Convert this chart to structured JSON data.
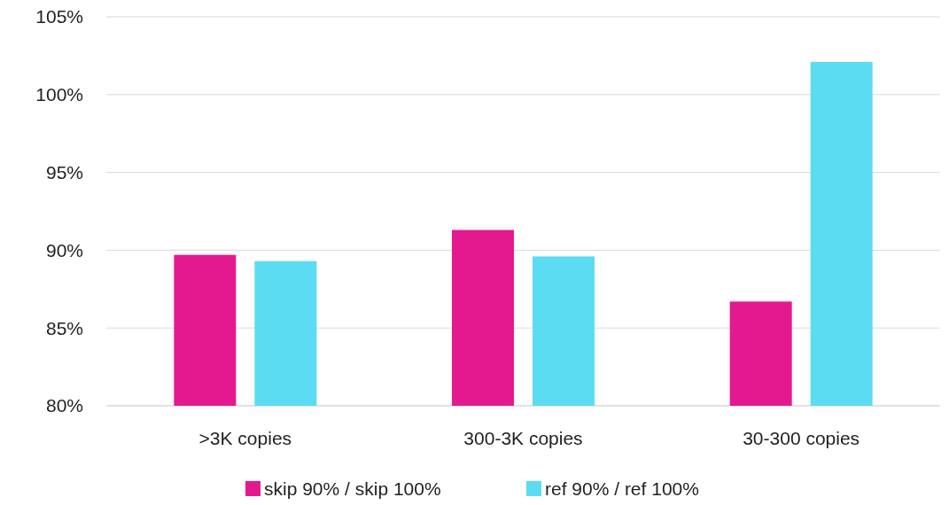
{
  "chart_data": {
    "type": "bar",
    "categories": [
      ">3K copies",
      "300-3K copies",
      "30-300 copies"
    ],
    "series": [
      {
        "name": "skip 90% / skip 100%",
        "color": "#e5198f",
        "values": [
          89.7,
          91.3,
          86.7
        ]
      },
      {
        "name": "ref 90% / ref 100%",
        "color": "#5bdcf2",
        "values": [
          89.3,
          89.6,
          102.1
        ]
      }
    ],
    "ylim": [
      80,
      105
    ],
    "yticks": [
      {
        "value": 80,
        "label": "80%"
      },
      {
        "value": 85,
        "label": "85%"
      },
      {
        "value": 90,
        "label": "90%"
      },
      {
        "value": 95,
        "label": "95%"
      },
      {
        "value": 100,
        "label": "100%"
      },
      {
        "value": 105,
        "label": "105%"
      }
    ],
    "grid": "y",
    "legend": "bottom"
  }
}
